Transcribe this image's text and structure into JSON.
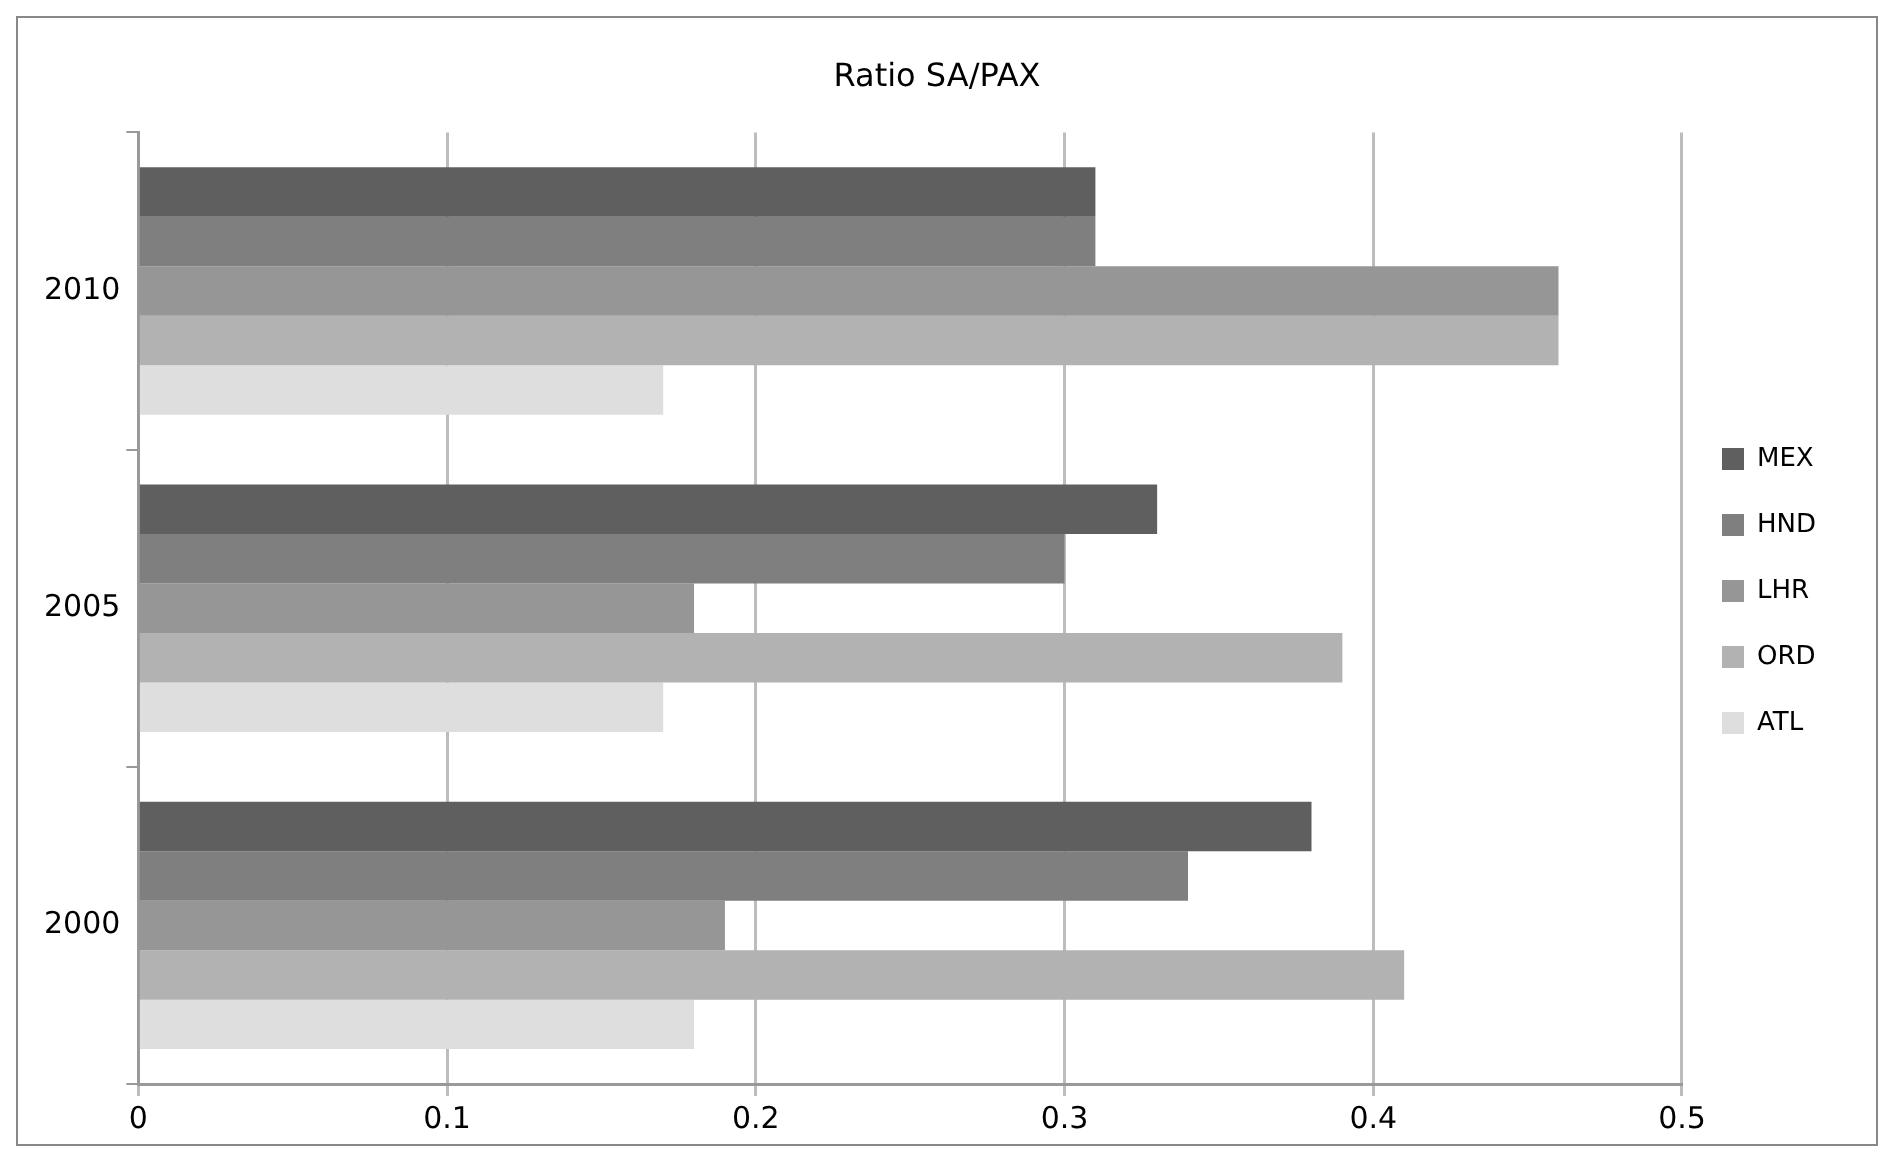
{
  "chart_data": {
    "type": "bar",
    "orientation": "horizontal",
    "title": "Ratio SA/PAX",
    "categories": [
      "2010",
      "2005",
      "2000"
    ],
    "series": [
      {
        "name": "MEX",
        "color": "#5f5f5f",
        "values": [
          0.31,
          0.33,
          0.38
        ]
      },
      {
        "name": "HND",
        "color": "#7f7f7f",
        "values": [
          0.31,
          0.3,
          0.34
        ]
      },
      {
        "name": "LHR",
        "color": "#969696",
        "values": [
          0.46,
          0.18,
          0.19
        ]
      },
      {
        "name": "ORD",
        "color": "#b2b2b2",
        "values": [
          0.46,
          0.39,
          0.41
        ]
      },
      {
        "name": "ATL",
        "color": "#dedede",
        "values": [
          0.17,
          0.17,
          0.18
        ]
      }
    ],
    "xlim": [
      0,
      0.5
    ],
    "xticks": [
      0,
      0.1,
      0.2,
      0.3,
      0.4,
      0.5
    ],
    "grid": "x",
    "legend": "right"
  }
}
